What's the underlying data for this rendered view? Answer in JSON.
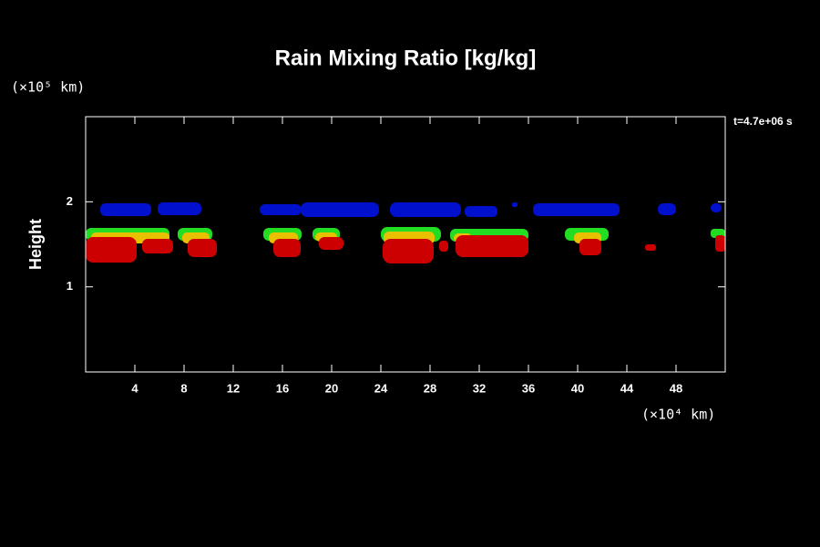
{
  "chart_data": {
    "type": "contour",
    "title": "Rain Mixing Ratio [kg/kg]",
    "ylabel": "Height",
    "y_unit": "(×10⁵ km)",
    "x_unit": "(×10⁴ km)",
    "annotation": "t=4.7e+06 s",
    "xlim": [
      0,
      52
    ],
    "ylim": [
      0,
      3
    ],
    "xticks": [
      4,
      8,
      12,
      16,
      20,
      24,
      28,
      32,
      36,
      40,
      44,
      48
    ],
    "yticks": [
      1,
      2
    ]
  }
}
